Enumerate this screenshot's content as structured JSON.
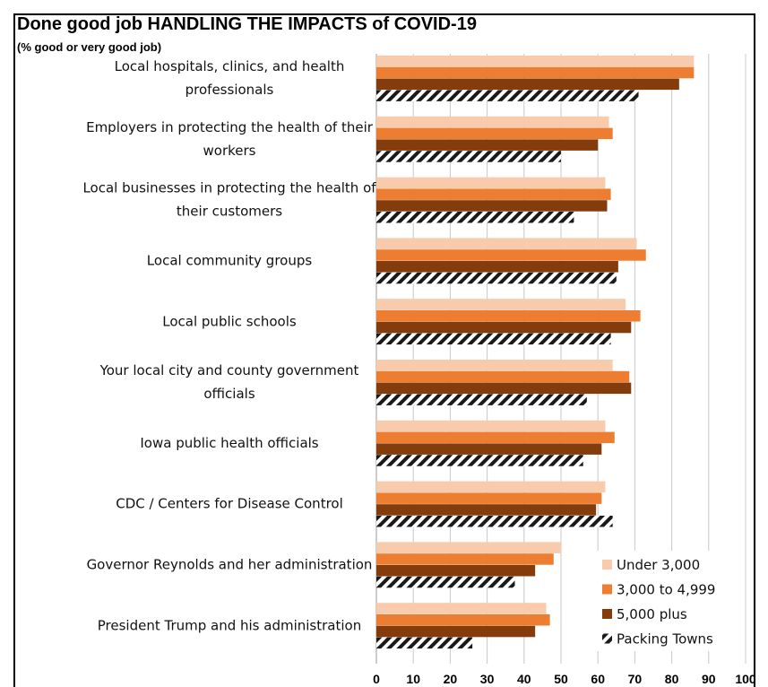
{
  "chart_data": {
    "type": "bar",
    "orientation": "horizontal",
    "title": "Done good job HANDLING THE IMPACTS of COVID-19",
    "subtitle": "(% good or very good job)",
    "xlim": [
      0,
      100
    ],
    "xticks": [
      0,
      10,
      20,
      30,
      40,
      50,
      60,
      70,
      80,
      90,
      100
    ],
    "grid": "vertical",
    "legend_position": "bottom-right",
    "categories": [
      [
        "Local hospitals, clinics, and health",
        "professionals"
      ],
      [
        "Employers in protecting the health of their",
        "workers"
      ],
      [
        "Local businesses in protecting the health of",
        "their customers"
      ],
      [
        "Local community groups"
      ],
      [
        "Local public schools"
      ],
      [
        "Your local city and county government",
        "officials"
      ],
      [
        "Iowa public health officials"
      ],
      [
        "CDC / Centers for Disease Control"
      ],
      [
        "Governor Reynolds and her administration"
      ],
      [
        "President Trump and his administration"
      ]
    ],
    "series": [
      {
        "name": "Under 3,000",
        "color": "#F8CBAD",
        "pattern": "solid",
        "values": [
          86,
          63,
          62,
          70.5,
          67.5,
          64,
          62,
          62,
          50,
          46
        ]
      },
      {
        "name": "3,000 to 4,999",
        "color": "#ED7D31",
        "pattern": "solid",
        "values": [
          86,
          64,
          63.5,
          73,
          71.5,
          68.5,
          64.5,
          61,
          48,
          47
        ]
      },
      {
        "name": "5,000 plus",
        "color": "#843C0C",
        "pattern": "solid",
        "values": [
          82,
          60,
          62.5,
          65.5,
          69,
          69,
          61,
          59.5,
          43,
          43
        ]
      },
      {
        "name": "Packing Towns",
        "color": "#1a1a1a",
        "pattern": "diagonal-stripes",
        "values": [
          71,
          50,
          53.5,
          65,
          63.5,
          57,
          56,
          64,
          37.5,
          26
        ]
      }
    ]
  }
}
